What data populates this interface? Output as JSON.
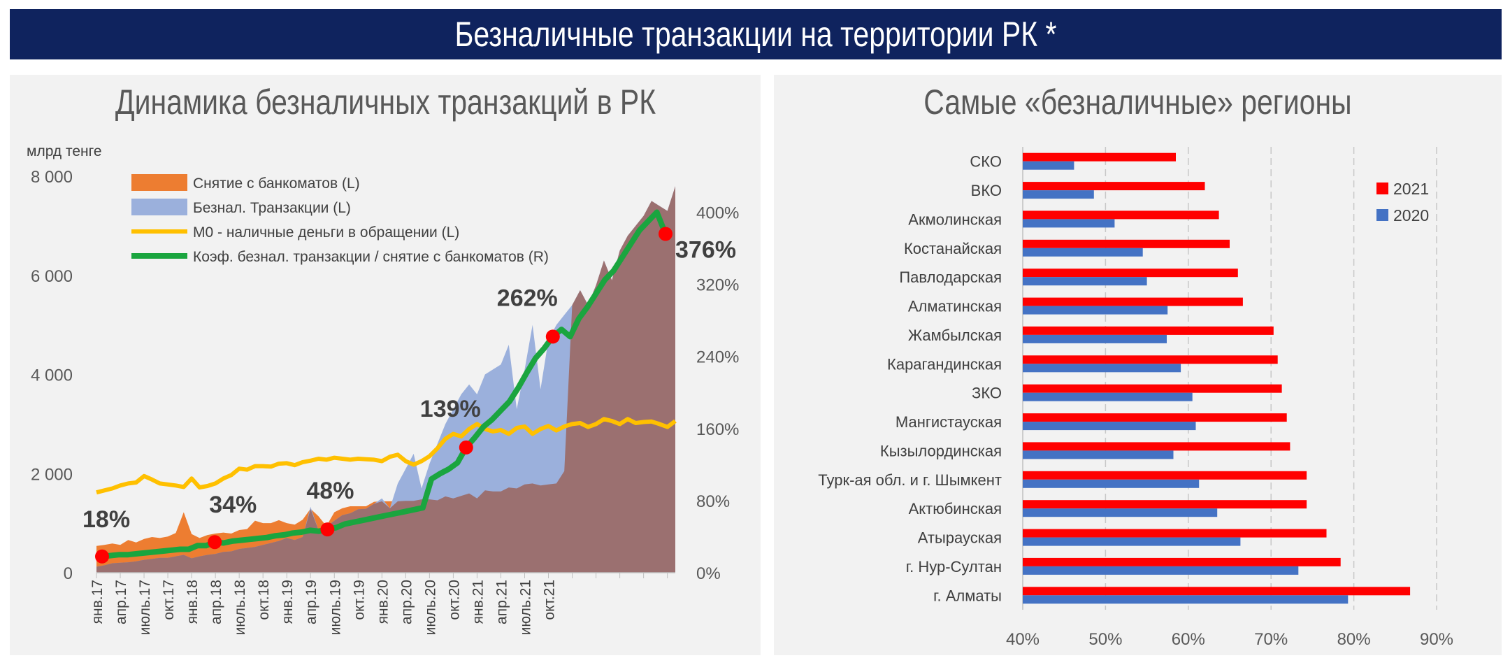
{
  "page_title": "Безналичные транзакции на территории РК *",
  "colors": {
    "banner": "#0f235e",
    "cash": "#ed7d31",
    "cashless": "#9bb0dc",
    "overlap": "#9b7070",
    "m0": "#ffc000",
    "ratio": "#1aa53f",
    "marker": "#ff0000",
    "y2021": "#ff0000",
    "y2020": "#4472c4"
  },
  "chart_data": [
    {
      "type": "area",
      "title": "Динамика безналичных транзакций в РК",
      "ylabel": "млрд тенге",
      "ylim": [
        0,
        8000
      ],
      "y2lim": [
        0,
        440
      ],
      "yticks": [
        "0",
        "2 000",
        "4 000",
        "6 000",
        "8 000"
      ],
      "y2ticks": [
        "0%",
        "80%",
        "160%",
        "240%",
        "320%",
        "400%"
      ],
      "xtick_labels": [
        "янв.17",
        "апр.17",
        "июль.17",
        "окт.17",
        "янв.18",
        "апр.18",
        "июль.18",
        "окт.18",
        "янв.19",
        "апр.19",
        "июль.19",
        "окт.19",
        "янв.20",
        "апр.20",
        "июль.20",
        "окт.20",
        "янв.21",
        "апр.21",
        "июль.21",
        "окт.21"
      ],
      "legend_position": "top-left",
      "series": [
        {
          "name": "Снятие с банкоматов (L)",
          "kind": "area",
          "values": [
            540,
            560,
            590,
            560,
            660,
            610,
            680,
            720,
            700,
            730,
            800,
            1220,
            780,
            700,
            760,
            790,
            810,
            790,
            860,
            880,
            1050,
            1000,
            1000,
            1060,
            1000,
            970,
            1070,
            1290,
            1140,
            940,
            1220,
            1300,
            1340,
            1340,
            1340,
            1430,
            1440,
            1440,
            1440,
            1450,
            1450,
            1480,
            1480,
            1460,
            1540,
            1500,
            1550,
            1600,
            1500,
            1660,
            1640,
            1640,
            1720,
            1700,
            1780,
            1800,
            1760,
            1780,
            1800,
            2050
          ]
        },
        {
          "name": "Безнал. Транзакции (L)",
          "kind": "area",
          "values": [
            120,
            150,
            190,
            200,
            210,
            230,
            260,
            280,
            300,
            300,
            330,
            360,
            290,
            330,
            360,
            380,
            420,
            430,
            480,
            500,
            520,
            560,
            600,
            640,
            700,
            660,
            720,
            1330,
            860,
            930,
            1050,
            1160,
            1200,
            1280,
            1290,
            1390,
            1500,
            1300,
            1800,
            2100,
            2400,
            1700,
            2200,
            2600,
            3000,
            3300,
            3600,
            3800,
            3600,
            4000,
            4100,
            4200,
            4600,
            3300,
            4100,
            5000,
            3700,
            4700,
            5000,
            5200,
            5400,
            5700,
            5400,
            5800,
            6300,
            5900,
            6500,
            6800,
            7000,
            7200,
            7500,
            7400,
            7300,
            7800
          ]
        },
        {
          "name": "M0 - наличные деньги в обращении (L)",
          "kind": "line",
          "values": [
            1620,
            1660,
            1700,
            1760,
            1800,
            1820,
            1950,
            1880,
            1800,
            1780,
            1760,
            1730,
            1900,
            1720,
            1750,
            1800,
            1900,
            1970,
            2100,
            2080,
            2150,
            2150,
            2140,
            2200,
            2210,
            2170,
            2230,
            2260,
            2300,
            2280,
            2320,
            2300,
            2280,
            2300,
            2290,
            2280,
            2250,
            2340,
            2380,
            2250,
            2180,
            2250,
            2350,
            2510,
            2700,
            2800,
            2750,
            2900,
            3000,
            2900,
            2850,
            2880,
            2800,
            2920,
            2950,
            2800,
            2900,
            2960,
            2870,
            2950,
            3000,
            3020,
            2940,
            3000,
            3100,
            3060,
            3000,
            3100,
            3020,
            3040,
            3050,
            3000,
            2940,
            3060
          ]
        },
        {
          "name": "Коэф. безнал. транзакции / снятие с банкоматов (R)",
          "kind": "line",
          "values": [
            18,
            19,
            20,
            20,
            21,
            22,
            23,
            24,
            25,
            26,
            26,
            30,
            30,
            34,
            33,
            35,
            36,
            37,
            38,
            39,
            41,
            42,
            44,
            45,
            47,
            46,
            48,
            50,
            54,
            56,
            58,
            60,
            62,
            64,
            66,
            68,
            70,
            72,
            104,
            110,
            115,
            122,
            139,
            150,
            162,
            170,
            180,
            190,
            205,
            222,
            238,
            249,
            262,
            270,
            262,
            282,
            295,
            310,
            325,
            335,
            350,
            365,
            380,
            390,
            400,
            376
          ]
        }
      ],
      "annotations": [
        {
          "label": "18%",
          "value": 18
        },
        {
          "label": "34%",
          "value": 34
        },
        {
          "label": "48%",
          "value": 48
        },
        {
          "label": "139%",
          "value": 139
        },
        {
          "label": "262%",
          "value": 262
        },
        {
          "label": "376%",
          "value": 376
        }
      ]
    },
    {
      "type": "bar",
      "title": "Самые «безналичные» регионы",
      "orientation": "horizontal",
      "categories": [
        "СКО",
        "ВКО",
        "Акмолинская",
        "Костанайская",
        "Павлодарская",
        "Алматинская",
        "Жамбылская",
        "Карагандинская",
        "ЗКО",
        "Мангистауская",
        "Кызылординская",
        "Турк-ая обл. и г. Шымкент",
        "Актюбинская",
        "Атырауская",
        "г. Нур-Султан",
        "г. Алматы"
      ],
      "xlim": [
        40,
        90
      ],
      "xtick_labels": [
        "40%",
        "50%",
        "60%",
        "70%",
        "80%",
        "90%"
      ],
      "grid": true,
      "legend_position": "top-right",
      "series": [
        {
          "name": "2021",
          "values": [
            58.5,
            62,
            63.7,
            65,
            66,
            66.6,
            70.3,
            70.8,
            71.3,
            71.9,
            72.3,
            74.3,
            74.3,
            76.7,
            78.4,
            86.8
          ]
        },
        {
          "name": "2020",
          "values": [
            46.2,
            48.6,
            51.1,
            54.5,
            55,
            57.5,
            57.4,
            59.1,
            60.5,
            60.9,
            58.2,
            61.3,
            63.5,
            66.3,
            73.3,
            79.3
          ]
        }
      ]
    }
  ]
}
